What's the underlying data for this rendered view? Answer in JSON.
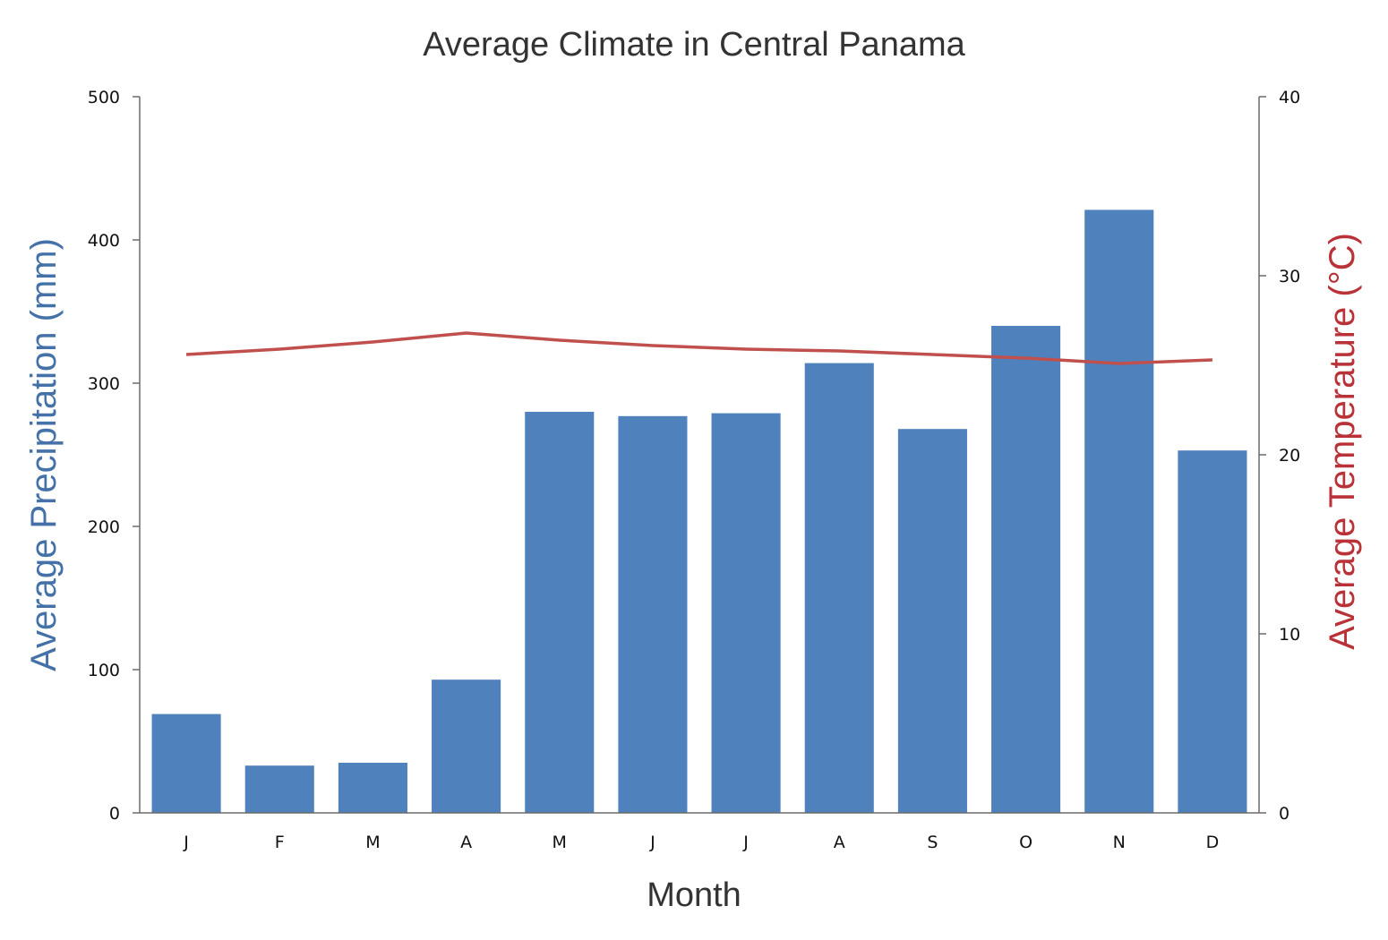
{
  "chart_data": {
    "type": "bar",
    "title": "Average Climate in Central Panama",
    "xlabel": "Month",
    "ylabel_left": "Average Precipitation (mm)",
    "ylabel_right": "Average Temperature (°C)",
    "categories": [
      "J",
      "F",
      "M",
      "A",
      "M",
      "J",
      "J",
      "A",
      "S",
      "O",
      "N",
      "D"
    ],
    "ylim_left": [
      0,
      500
    ],
    "ylim_right": [
      0,
      40
    ],
    "yticks_left": [
      "0",
      "100",
      "200",
      "300",
      "400",
      "500"
    ],
    "yticks_right": [
      "0",
      "10",
      "20",
      "30",
      "40"
    ],
    "grid": false,
    "series": [
      {
        "name": "Average Precipitation (mm)",
        "type": "bar",
        "axis": "left",
        "color": "#4f81bd",
        "values": [
          69,
          33,
          35,
          93,
          280,
          277,
          279,
          314,
          268,
          340,
          421,
          253
        ]
      },
      {
        "name": "Average Temperature (°C)",
        "type": "line",
        "axis": "right",
        "color": "#c0504d",
        "values": [
          25.6,
          25.9,
          26.3,
          26.8,
          26.4,
          26.1,
          25.9,
          25.8,
          25.6,
          25.4,
          25.1,
          25.3
        ]
      }
    ]
  }
}
